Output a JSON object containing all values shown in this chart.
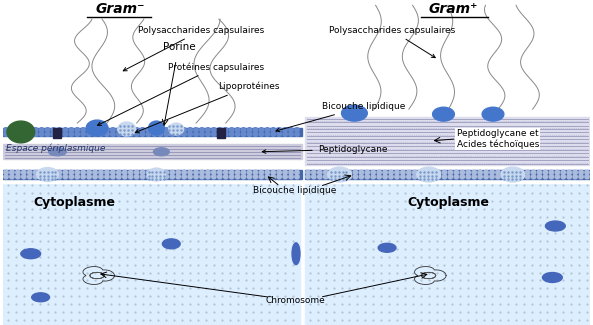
{
  "gram_neg_label": "Gram⁻",
  "gram_pos_label": "Gram⁺",
  "labels": {
    "polysaccharides": "Polysaccharides capsulaires",
    "porine": "Porine",
    "proteines": "Protéines capsulaires",
    "lipoproteines": "Lipoprotéines",
    "bicouche1": "Bicouche lipidique",
    "espace": "Espace périplasmique",
    "peptidoglycane": "Peptidoglycane",
    "bicouche2": "Bicouche lipidique",
    "cytoplasme": "Cytoplasme",
    "chromosome": "Chromosome",
    "peptido_acides": "Peptidoglycane et\nAcides téchoïques"
  }
}
